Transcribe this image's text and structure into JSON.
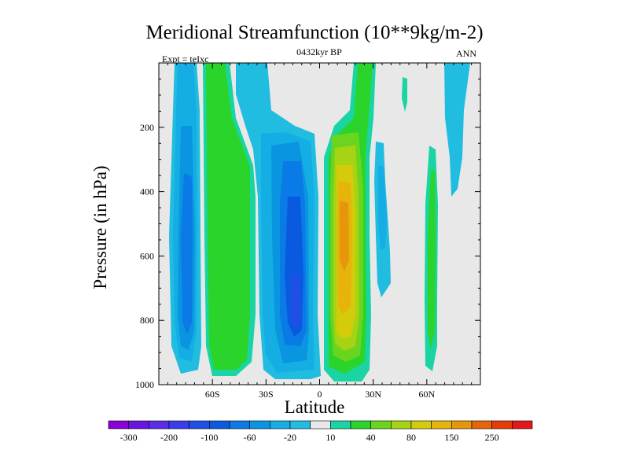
{
  "chart_data": {
    "type": "contour",
    "title": "Meridional Streamfunction (10**9kg/m-2)",
    "left_label": "Expt = teIxc",
    "center_label": "0432kyr BP",
    "right_label": "ANN",
    "xlabel": "Latitude",
    "ylabel": "Pressure (in hPa)",
    "xlim": [
      -90,
      90
    ],
    "ylim": [
      0,
      1000
    ],
    "x_ticks": [
      {
        "v": -60,
        "label": "60S"
      },
      {
        "v": -30,
        "label": "30S"
      },
      {
        "v": 0,
        "label": "0"
      },
      {
        "v": 30,
        "label": "30N"
      },
      {
        "v": 60,
        "label": "60N"
      }
    ],
    "y_ticks": [
      {
        "v": 200,
        "label": "200"
      },
      {
        "v": 400,
        "label": "400"
      },
      {
        "v": 600,
        "label": "600"
      },
      {
        "v": 800,
        "label": "800"
      },
      {
        "v": 1000,
        "label": "1000"
      }
    ],
    "colorbar": {
      "levels": [
        -300,
        -250,
        -200,
        -150,
        -100,
        -80,
        -60,
        -40,
        -20,
        -10,
        10,
        20,
        40,
        60,
        80,
        100,
        150,
        200,
        250,
        300
      ],
      "labels": [
        "-300",
        "-200",
        "-100",
        "-60",
        "-20",
        "10",
        "40",
        "80",
        "150",
        "250"
      ],
      "colors": [
        "#8a00d6",
        "#6a14e0",
        "#5a2de8",
        "#3c3ced",
        "#1e50e6",
        "#0a5ae0",
        "#0a7ae6",
        "#0a95e0",
        "#14aee4",
        "#21bde0",
        "#e8e8e8",
        "#1ad4a4",
        "#2ad42a",
        "#6ad41e",
        "#a6d414",
        "#d4cc0a",
        "#e6b40a",
        "#e6960a",
        "#e6640a",
        "#e63c0a",
        "#e41818"
      ]
    },
    "features": [
      {
        "name": "southern-polar-negative-cell",
        "sign": "negative",
        "lat_range": [
          -82,
          -68
        ],
        "p_range": [
          0,
          975
        ],
        "extreme": -80
      },
      {
        "name": "southern-midlat-positive-cell",
        "sign": "positive",
        "lat_range": [
          -68,
          -48
        ],
        "p_range": [
          0,
          975
        ],
        "extreme": 20
      },
      {
        "name": "southern-hadley-negative-cell",
        "sign": "negative",
        "lat_range": [
          -40,
          -3
        ],
        "p_range": [
          0,
          980
        ],
        "extreme": -100
      },
      {
        "name": "northern-hadley-positive-cell",
        "sign": "positive",
        "lat_range": [
          5,
          28
        ],
        "p_range": [
          0,
          985
        ],
        "extreme": 150
      },
      {
        "name": "northern-ferrel-negative-cell",
        "sign": "negative",
        "lat_range": [
          30,
          38
        ],
        "p_range": [
          230,
          720
        ],
        "extreme": -20
      },
      {
        "name": "northern-positive-cell",
        "sign": "positive",
        "lat_range": [
          60,
          66
        ],
        "p_range": [
          290,
          960
        ],
        "extreme": 20
      },
      {
        "name": "northern-polar-negative-cell",
        "sign": "negative",
        "lat_range": [
          70,
          83
        ],
        "p_range": [
          0,
          420
        ],
        "extreme": -10
      }
    ]
  }
}
